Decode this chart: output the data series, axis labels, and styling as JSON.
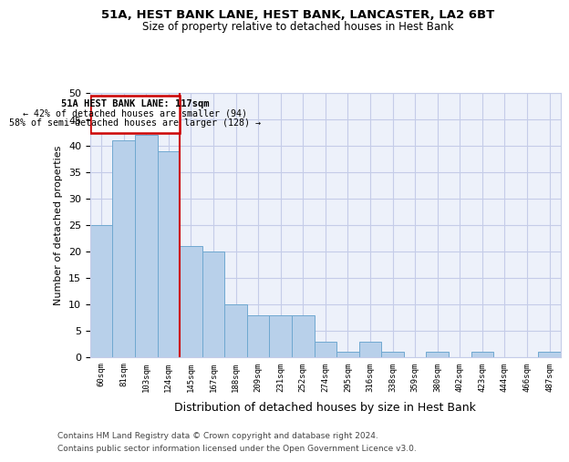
{
  "title1": "51A, HEST BANK LANE, HEST BANK, LANCASTER, LA2 6BT",
  "title2": "Size of property relative to detached houses in Hest Bank",
  "xlabel": "Distribution of detached houses by size in Hest Bank",
  "ylabel": "Number of detached properties",
  "categories": [
    "60sqm",
    "81sqm",
    "103sqm",
    "124sqm",
    "145sqm",
    "167sqm",
    "188sqm",
    "209sqm",
    "231sqm",
    "252sqm",
    "274sqm",
    "295sqm",
    "316sqm",
    "338sqm",
    "359sqm",
    "380sqm",
    "402sqm",
    "423sqm",
    "444sqm",
    "466sqm",
    "487sqm"
  ],
  "values": [
    25,
    41,
    42,
    39,
    21,
    20,
    10,
    8,
    8,
    8,
    3,
    1,
    3,
    1,
    0,
    1,
    0,
    1,
    0,
    0,
    1
  ],
  "bar_color": "#b8d0ea",
  "bar_edge_color": "#6fa8d0",
  "redline_x": 3.0,
  "redline_label": "51A HEST BANK LANE: 117sqm",
  "annotation_line1": "← 42% of detached houses are smaller (94)",
  "annotation_line2": "58% of semi-detached houses are larger (128) →",
  "ylim_max": 50,
  "yticks": [
    0,
    5,
    10,
    15,
    20,
    25,
    30,
    35,
    40,
    45,
    50
  ],
  "background_color": "#edf1fa",
  "grid_color": "#c5cce8",
  "footer1": "Contains HM Land Registry data © Crown copyright and database right 2024.",
  "footer2": "Contains public sector information licensed under the Open Government Licence v3.0."
}
